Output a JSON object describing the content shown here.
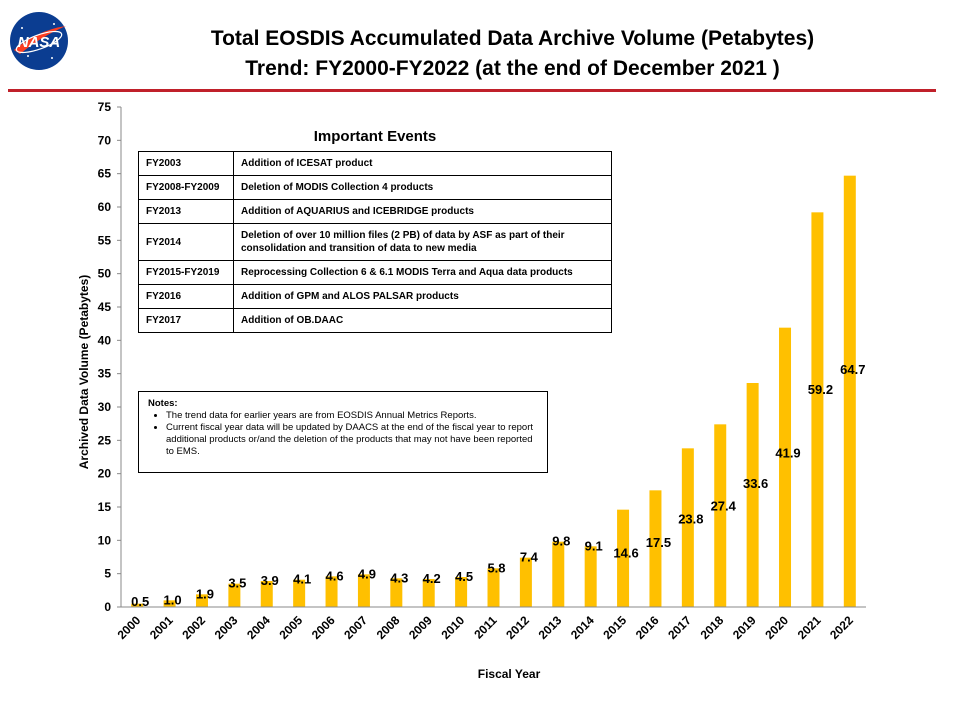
{
  "header": {
    "logo_text": "NASA",
    "title_line1": "Total EOSDIS Accumulated Data Archive Volume (Petabytes)",
    "title_line2": "Trend: FY2000-FY2022 (at the end of December 2021 )"
  },
  "colors": {
    "bar": "#FFC000",
    "rule": "#C0202A",
    "logo_blue": "#0B3D91",
    "logo_red": "#FC3D21"
  },
  "events": {
    "title": "Important Events",
    "rows": [
      {
        "year": "FY2003",
        "text": "Addition of ICESAT product"
      },
      {
        "year": "FY2008-FY2009",
        "text": "Deletion of  MODIS Collection 4 products"
      },
      {
        "year": "FY2013",
        "text": "Addition of AQUARIUS and ICEBRIDGE products"
      },
      {
        "year": "FY2014",
        "text": "Deletion of over 10 million files (2 PB) of data by ASF as part of their consolidation and transition of data to new media"
      },
      {
        "year": "FY2015-FY2019",
        "text": "Reprocessing  Collection 6 & 6.1 MODIS Terra and Aqua data products"
      },
      {
        "year": "FY2016",
        "text": "Addition of GPM and ALOS PALSAR products"
      },
      {
        "year": "FY2017",
        "text": "Addition of OB.DAAC"
      }
    ]
  },
  "notes": {
    "title": "Notes:",
    "items": [
      "The trend data for earlier years are from EOSDIS Annual Metrics Reports.",
      "Current fiscal year data will be updated by DAACS at the end of the fiscal year to report additional products or/and the deletion of the products that may not have been reported to EMS."
    ]
  },
  "chart_data": {
    "type": "bar",
    "categories": [
      "2000",
      "2001",
      "2002",
      "2003",
      "2004",
      "2005",
      "2006",
      "2007",
      "2008",
      "2009",
      "2010",
      "2011",
      "2012",
      "2013",
      "2014",
      "2015",
      "2016",
      "2017",
      "2018",
      "2019",
      "2020",
      "2021",
      "2022"
    ],
    "values": [
      0.5,
      1.0,
      1.9,
      3.5,
      3.9,
      4.1,
      4.6,
      4.9,
      4.3,
      4.2,
      4.5,
      5.8,
      7.4,
      9.8,
      9.1,
      14.6,
      17.5,
      23.8,
      27.4,
      33.6,
      41.9,
      59.2,
      64.7
    ],
    "labels": [
      "0.5",
      "1.0",
      "1.9",
      "3.5",
      "3.9",
      "4.1",
      "4.6",
      "4.9",
      "4.3",
      "4.2",
      "4.5",
      "5.8",
      "7.4",
      "9.8",
      "9.1",
      "14.6",
      "17.5",
      "23.8",
      "27.4",
      "33.6",
      "41.9",
      "59.2",
      "64.7"
    ],
    "xlabel": "Fiscal Year",
    "ylabel": "Archived Data Volume (Petabytes)",
    "ylim": [
      0,
      75
    ],
    "yticks": [
      0,
      5,
      10,
      15,
      20,
      25,
      30,
      35,
      40,
      45,
      50,
      55,
      60,
      65,
      70,
      75
    ],
    "grid": false,
    "legend": "none"
  }
}
